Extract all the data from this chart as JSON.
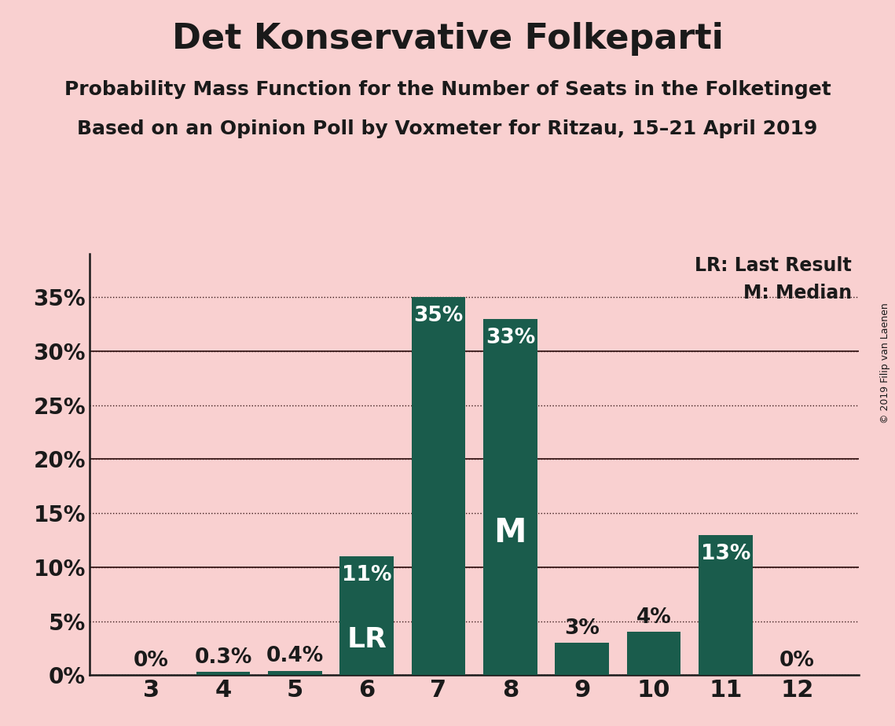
{
  "title": "Det Konservative Folkeparti",
  "subtitle1": "Probability Mass Function for the Number of Seats in the Folketinget",
  "subtitle2": "Based on an Opinion Poll by Voxmeter for Ritzau, 15–21 April 2019",
  "copyright": "© 2019 Filip van Laenen",
  "categories": [
    3,
    4,
    5,
    6,
    7,
    8,
    9,
    10,
    11,
    12
  ],
  "values": [
    0.0,
    0.3,
    0.4,
    11.0,
    35.0,
    33.0,
    3.0,
    4.0,
    13.0,
    0.0
  ],
  "bar_color": "#1a5c4c",
  "background_color": "#f9d0d0",
  "label_color": "#1a1a1a",
  "bar_labels": [
    "0%",
    "0.3%",
    "0.4%",
    "11%",
    "35%",
    "33%",
    "3%",
    "4%",
    "13%",
    "0%"
  ],
  "label_inside": [
    false,
    false,
    false,
    true,
    true,
    true,
    false,
    false,
    true,
    false
  ],
  "lr_index": 3,
  "median_index": 5,
  "yticks": [
    0,
    5,
    10,
    15,
    20,
    25,
    30,
    35
  ],
  "ylim": [
    0,
    39
  ],
  "grid_color": "#3a1a1a",
  "title_fontsize": 32,
  "subtitle_fontsize": 18,
  "ylabel_fontsize": 20,
  "xlabel_fontsize": 22,
  "bar_label_fontsize": 19,
  "legend_fontsize": 17
}
